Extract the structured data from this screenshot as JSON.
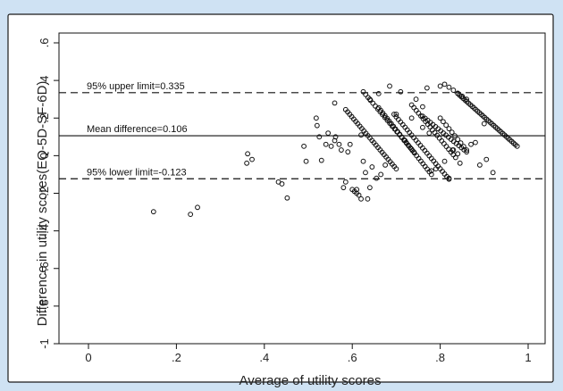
{
  "chart_data": {
    "type": "scatter",
    "title": "",
    "xlabel": "Average of utility scores",
    "ylabel": "Difference in utility scores(EQ-5D-SF-6D)",
    "xlim": [
      0,
      1
    ],
    "ylim": [
      -1,
      0.6
    ],
    "grid": false,
    "legend": "none",
    "colors": {
      "background": "#cfe2f3",
      "plot_region": "#ffffff",
      "points": "#111111",
      "lines": "#111111"
    },
    "x_ticks": [
      {
        "value": 0,
        "label": "0"
      },
      {
        "value": 0.2,
        "label": ".2"
      },
      {
        "value": 0.4,
        "label": ".4"
      },
      {
        "value": 0.6,
        "label": ".6"
      },
      {
        "value": 0.8,
        "label": ".8"
      },
      {
        "value": 1,
        "label": "1"
      }
    ],
    "y_ticks": [
      {
        "value": 0.6,
        "label": ".6"
      },
      {
        "value": 0.4,
        "label": ".4"
      },
      {
        "value": 0.2,
        "label": ".2"
      },
      {
        "value": 0,
        "label": "0"
      },
      {
        "value": -0.2,
        "label": "-.2"
      },
      {
        "value": -0.4,
        "label": "-.4"
      },
      {
        "value": -0.6,
        "label": "-.6"
      },
      {
        "value": -0.8,
        "label": "-.8"
      },
      {
        "value": -1,
        "label": "-1"
      }
    ],
    "reference_lines": [
      {
        "name": "upper",
        "y": 0.335,
        "style": "dashed",
        "label": "95% upper limit=0.335"
      },
      {
        "name": "mean",
        "y": 0.106,
        "style": "solid",
        "label": "Mean difference=0.106"
      },
      {
        "name": "lower",
        "y": -0.123,
        "style": "dashed",
        "label": "95% lower limit=-0.123"
      }
    ],
    "scattered_points": [
      [
        0.148,
        -0.298
      ],
      [
        0.232,
        -0.312
      ],
      [
        0.248,
        -0.275
      ],
      [
        0.36,
        -0.04
      ],
      [
        0.362,
        0.01
      ],
      [
        0.372,
        -0.02
      ],
      [
        0.432,
        -0.14
      ],
      [
        0.44,
        -0.15
      ],
      [
        0.452,
        -0.225
      ],
      [
        0.49,
        0.05
      ],
      [
        0.495,
        -0.03
      ],
      [
        0.518,
        0.2
      ],
      [
        0.52,
        0.16
      ],
      [
        0.525,
        0.1
      ],
      [
        0.53,
        -0.025
      ],
      [
        0.54,
        0.06
      ],
      [
        0.545,
        0.12
      ],
      [
        0.552,
        0.05
      ],
      [
        0.56,
        0.28
      ],
      [
        0.562,
        0.1
      ],
      [
        0.57,
        0.06
      ],
      [
        0.575,
        0.03
      ],
      [
        0.58,
        -0.17
      ],
      [
        0.585,
        -0.14
      ],
      [
        0.59,
        0.02
      ],
      [
        0.595,
        0.06
      ],
      [
        0.6,
        -0.18
      ],
      [
        0.605,
        -0.19
      ],
      [
        0.61,
        -0.2
      ],
      [
        0.615,
        -0.21
      ],
      [
        0.62,
        0.11
      ],
      [
        0.625,
        -0.03
      ],
      [
        0.63,
        -0.09
      ],
      [
        0.635,
        -0.23
      ],
      [
        0.64,
        -0.17
      ],
      [
        0.645,
        -0.06
      ],
      [
        0.655,
        -0.12
      ],
      [
        0.665,
        -0.1
      ],
      [
        0.675,
        -0.05
      ],
      [
        0.685,
        0.37
      ],
      [
        0.7,
        0.22
      ],
      [
        0.71,
        0.34
      ],
      [
        0.72,
        0.08
      ],
      [
        0.735,
        0.2
      ],
      [
        0.745,
        0.3
      ],
      [
        0.76,
        0.26
      ],
      [
        0.775,
        0.12
      ],
      [
        0.78,
        -0.08
      ],
      [
        0.79,
        -0.07
      ],
      [
        0.81,
        -0.03
      ],
      [
        0.82,
        -0.12
      ],
      [
        0.828,
        0.03
      ],
      [
        0.83,
        0.03
      ],
      [
        0.84,
        0.01
      ],
      [
        0.845,
        -0.04
      ],
      [
        0.87,
        0.06
      ],
      [
        0.88,
        0.07
      ],
      [
        0.89,
        -0.05
      ],
      [
        0.9,
        0.17
      ],
      [
        0.905,
        -0.02
      ],
      [
        0.92,
        -0.09
      ],
      [
        0.77,
        0.36
      ],
      [
        0.8,
        0.37
      ],
      [
        0.64,
        0.3
      ],
      [
        0.66,
        0.33
      ],
      [
        0.61,
        -0.18
      ],
      [
        0.62,
        -0.23
      ],
      [
        0.56,
        0.08
      ],
      [
        0.76,
        0.15
      ]
    ],
    "diagonal_bands": [
      {
        "x_start": 0.585,
        "x_end": 0.7,
        "y_start": 0.245,
        "y_end": -0.07,
        "count": 26
      },
      {
        "x_start": 0.625,
        "x_end": 0.74,
        "y_start": 0.34,
        "y_end": 0.02,
        "count": 22
      },
      {
        "x_start": 0.66,
        "x_end": 0.78,
        "y_start": 0.255,
        "y_end": -0.1,
        "count": 26
      },
      {
        "x_start": 0.695,
        "x_end": 0.82,
        "y_start": 0.22,
        "y_end": -0.125,
        "count": 26
      },
      {
        "x_start": 0.735,
        "x_end": 0.835,
        "y_start": 0.27,
        "y_end": -0.01,
        "count": 20
      },
      {
        "x_start": 0.76,
        "x_end": 0.86,
        "y_start": 0.21,
        "y_end": 0.02,
        "count": 18
      },
      {
        "x_start": 0.8,
        "x_end": 0.86,
        "y_start": 0.2,
        "y_end": 0.03,
        "count": 10
      },
      {
        "x_start": 0.84,
        "x_end": 0.975,
        "y_start": 0.33,
        "y_end": 0.05,
        "count": 34
      },
      {
        "x_start": 0.81,
        "x_end": 0.86,
        "y_start": 0.38,
        "y_end": 0.3,
        "count": 6
      }
    ]
  }
}
